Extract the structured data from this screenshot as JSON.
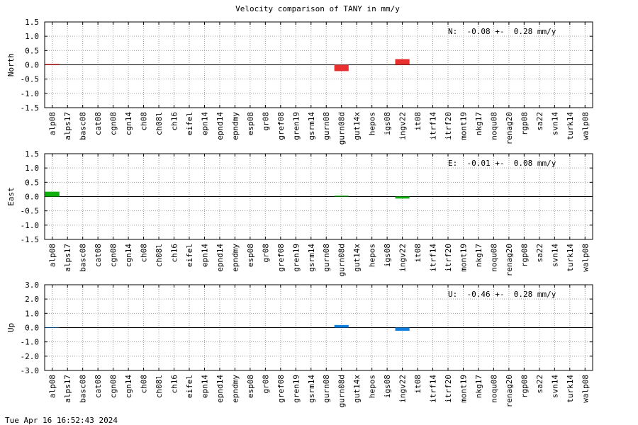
{
  "title": "Velocity comparison of TANY in mm/y",
  "footer": "Tue Apr 16 16:52:43 2024",
  "chart_data": [
    {
      "type": "bar",
      "ylabel": "North",
      "annotation": "N:  -0.08 +-  0.28 mm/y",
      "color": "#e83030",
      "grid": true,
      "categories": [
        "alp08",
        "alps17",
        "basc08",
        "cat08",
        "cgn08",
        "cgn14",
        "ch08",
        "ch08l",
        "ch16",
        "eifel",
        "epn14",
        "epnd14",
        "epndmy",
        "esp08",
        "gr08",
        "gref08",
        "gren19",
        "gsrm14",
        "gurn08",
        "gurn08d",
        "gut14x",
        "hepos",
        "igs08",
        "ingv22",
        "it08",
        "itrf14",
        "itrf20",
        "mont19",
        "nkg17",
        "noqu08",
        "renag20",
        "rgp08",
        "sa22",
        "svn14",
        "turk14",
        "walp08"
      ],
      "values": [
        0.03,
        null,
        null,
        null,
        null,
        null,
        null,
        null,
        null,
        null,
        null,
        null,
        null,
        null,
        null,
        null,
        null,
        null,
        null,
        -0.22,
        null,
        null,
        null,
        0.2,
        null,
        null,
        null,
        null,
        null,
        null,
        null,
        null,
        null,
        null,
        null,
        null
      ],
      "ylim": [
        -1.5,
        1.5
      ],
      "yticks": [
        1.5,
        {
          "value": 1,
          "label": "1.0"
        },
        0.5,
        {
          "value": 0,
          "label": "0.0"
        },
        -0.5,
        {
          "value": -1,
          "label": "-1.0"
        },
        -1.5
      ]
    },
    {
      "type": "bar",
      "ylabel": "East",
      "annotation": "E:  -0.01 +-  0.08 mm/y",
      "color": "#10b010",
      "grid": true,
      "categories": [
        "alp08",
        "alps17",
        "basc08",
        "cat08",
        "cgn08",
        "cgn14",
        "ch08",
        "ch08l",
        "ch16",
        "eifel",
        "epn14",
        "epnd14",
        "epndmy",
        "esp08",
        "gr08",
        "gref08",
        "gren19",
        "gsrm14",
        "gurn08",
        "gurn08d",
        "gut14x",
        "hepos",
        "igs08",
        "ingv22",
        "it08",
        "itrf14",
        "itrf20",
        "mont19",
        "nkg17",
        "noqu08",
        "renag20",
        "rgp08",
        "sa22",
        "svn14",
        "turk14",
        "walp08"
      ],
      "values": [
        0.17,
        null,
        null,
        null,
        null,
        null,
        null,
        null,
        null,
        null,
        null,
        null,
        null,
        null,
        null,
        null,
        null,
        null,
        null,
        0.03,
        null,
        null,
        null,
        -0.07,
        null,
        null,
        null,
        null,
        null,
        null,
        null,
        null,
        null,
        null,
        null,
        null
      ],
      "ylim": [
        -1.5,
        1.5
      ],
      "yticks": [
        1.5,
        {
          "value": 1,
          "label": "1.0"
        },
        0.5,
        {
          "value": 0,
          "label": "0.0"
        },
        -0.5,
        {
          "value": -1,
          "label": "-1.0"
        },
        -1.5
      ]
    },
    {
      "type": "bar",
      "ylabel": "Up",
      "annotation": "U:  -0.46 +-  0.28 mm/y",
      "color": "#1080e0",
      "grid": true,
      "categories": [
        "alp08",
        "alps17",
        "basc08",
        "cat08",
        "cgn08",
        "cgn14",
        "ch08",
        "ch08l",
        "ch16",
        "eifel",
        "epn14",
        "epnd14",
        "epndmy",
        "esp08",
        "gr08",
        "gref08",
        "gren19",
        "gsrm14",
        "gurn08",
        "gurn08d",
        "gut14x",
        "hepos",
        "igs08",
        "ingv22",
        "it08",
        "itrf14",
        "itrf20",
        "mont19",
        "nkg17",
        "noqu08",
        "renag20",
        "rgp08",
        "sa22",
        "svn14",
        "turk14",
        "walp08"
      ],
      "values": [
        0.03,
        null,
        null,
        null,
        null,
        null,
        null,
        null,
        null,
        null,
        null,
        null,
        null,
        null,
        null,
        null,
        null,
        null,
        null,
        0.18,
        null,
        null,
        null,
        -0.22,
        null,
        null,
        null,
        null,
        null,
        null,
        null,
        null,
        null,
        null,
        null,
        null
      ],
      "ylim": [
        -3,
        3
      ],
      "yticks": [
        {
          "value": 3,
          "label": "3.0"
        },
        {
          "value": 2,
          "label": "2.0"
        },
        {
          "value": 1,
          "label": "1.0"
        },
        {
          "value": 0,
          "label": "0.0"
        },
        {
          "value": -1,
          "label": "-1.0"
        },
        {
          "value": -2,
          "label": "-2.0"
        },
        {
          "value": -3,
          "label": "-3.0"
        }
      ]
    }
  ]
}
